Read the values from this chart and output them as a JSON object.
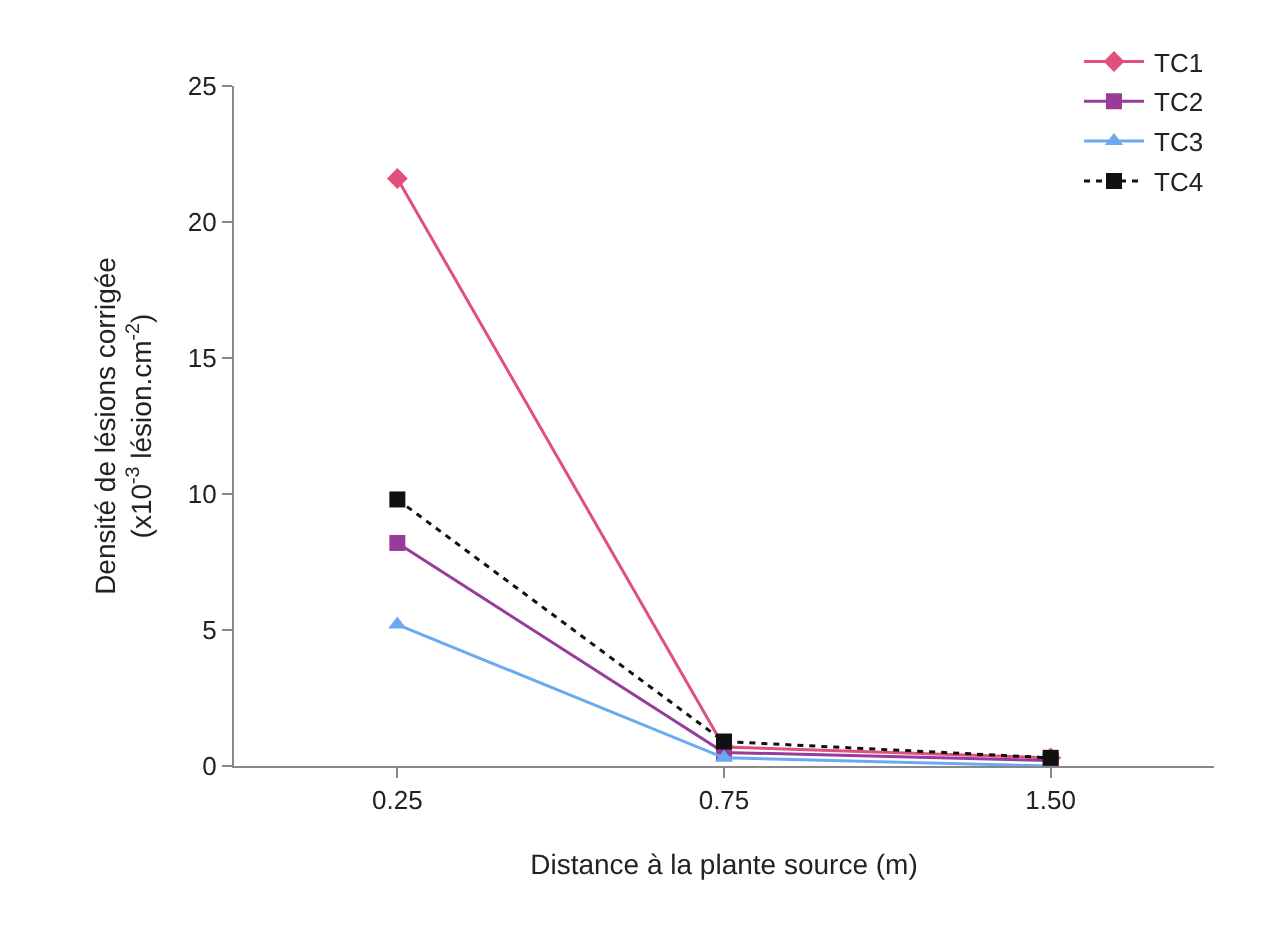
{
  "chart_data": {
    "type": "line",
    "xlabel": "Distance à la plante source (m)",
    "ylabel": "Densité de lésions corrigée\n(x10$^{-3}$ lésion.cm$^{-2}$)",
    "categories": [
      "0.25",
      "0.75",
      "1.50"
    ],
    "series": [
      {
        "name": "TC1",
        "color": "#e0507a",
        "marker": "diamond",
        "line_style": "solid",
        "values": [
          21.6,
          0.7,
          0.3
        ]
      },
      {
        "name": "TC2",
        "color": "#993c99",
        "marker": "square",
        "line_style": "solid",
        "values": [
          8.2,
          0.5,
          0.2
        ]
      },
      {
        "name": "TC3",
        "color": "#6aaaf0",
        "marker": "triangle",
        "line_style": "solid",
        "values": [
          5.2,
          0.3,
          0.0
        ]
      },
      {
        "name": "TC4",
        "color": "#111111",
        "marker": "square",
        "line_style": "dotted",
        "values": [
          9.8,
          0.9,
          0.3
        ]
      }
    ],
    "ylim": [
      0,
      25
    ],
    "yticks": [
      0,
      5,
      10,
      15,
      20,
      25
    ],
    "grid": false,
    "legend": "top right"
  }
}
